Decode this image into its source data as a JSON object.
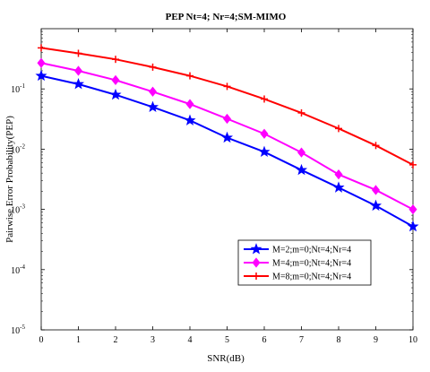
{
  "chart_data": {
    "type": "line",
    "title": "PEP Nt=4; Nr=4;SM-MIMO",
    "xlabel": "SNR(dB)",
    "ylabel": "Pairwise Error Probability(PEP)",
    "x": [
      0,
      1,
      2,
      3,
      4,
      5,
      6,
      7,
      8,
      9,
      10
    ],
    "xlim": [
      0,
      10
    ],
    "ylim": [
      1e-05,
      1
    ],
    "yscale": "log",
    "grid": false,
    "legend_position": "lower-right",
    "x_tick_labels": [
      "0",
      "1",
      "2",
      "3",
      "4",
      "5",
      "6",
      "7",
      "8",
      "9",
      "10"
    ],
    "y_tick_labels": [
      {
        "base": "10",
        "exp": "-1"
      },
      {
        "base": "10",
        "exp": "-2"
      },
      {
        "base": "10",
        "exp": "-3"
      },
      {
        "base": "10",
        "exp": "-4"
      },
      {
        "base": "10",
        "exp": "-5"
      }
    ],
    "series": [
      {
        "name": "M=2;m=0;Nt=4;Nr=4",
        "color": "#0000ff",
        "marker": "star",
        "values": [
          0.165,
          0.12,
          0.08,
          0.05,
          0.03,
          0.0155,
          0.009,
          0.0045,
          0.0023,
          0.00115,
          0.00052
        ]
      },
      {
        "name": "M=4;m=0;Nt=4;Nr=4",
        "color": "#ff00ff",
        "marker": "diamond",
        "values": [
          0.27,
          0.2,
          0.14,
          0.09,
          0.056,
          0.032,
          0.018,
          0.0088,
          0.0038,
          0.0021,
          0.001
        ]
      },
      {
        "name": "M=8;m=0;Nt=4;Nr=4",
        "color": "#ff0000",
        "marker": "plus",
        "values": [
          0.48,
          0.39,
          0.31,
          0.23,
          0.165,
          0.11,
          0.068,
          0.04,
          0.022,
          0.0115,
          0.0055
        ]
      }
    ]
  }
}
